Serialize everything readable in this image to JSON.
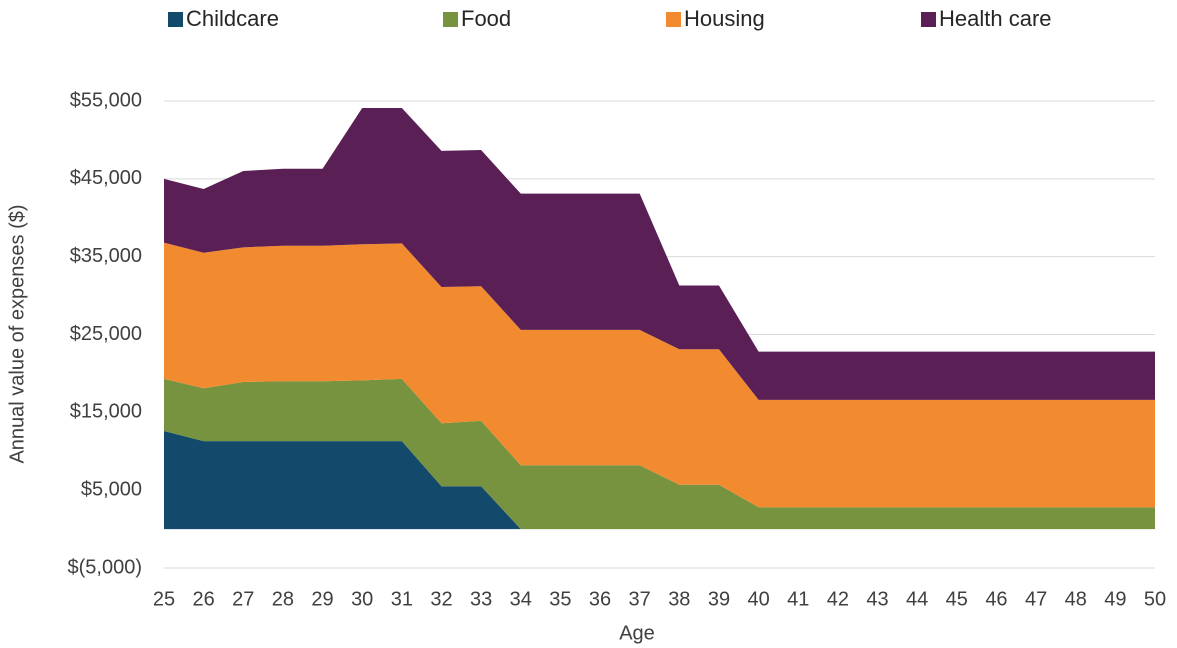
{
  "chart_data": {
    "type": "stacked_area",
    "x_label": "Age",
    "y_label": "Annual value of expenses ($)",
    "x": [
      25,
      26,
      27,
      28,
      29,
      30,
      31,
      32,
      33,
      34,
      35,
      36,
      37,
      38,
      39,
      40,
      41,
      42,
      43,
      44,
      45,
      46,
      47,
      48,
      49,
      50
    ],
    "xlim": [
      25,
      50
    ],
    "xticks": [
      25,
      26,
      27,
      28,
      29,
      30,
      31,
      32,
      33,
      34,
      35,
      36,
      37,
      38,
      39,
      40,
      41,
      42,
      43,
      44,
      45,
      46,
      47,
      48,
      49,
      50
    ],
    "ylim": [
      -5000,
      55000
    ],
    "yticks": [
      {
        "value": -5000,
        "label": "$(5,000)"
      },
      {
        "value": 5000,
        "label": "$5,000"
      },
      {
        "value": 15000,
        "label": "$15,000"
      },
      {
        "value": 25000,
        "label": "$25,000"
      },
      {
        "value": 35000,
        "label": "$35,000"
      },
      {
        "value": 45000,
        "label": "$45,000"
      },
      {
        "value": 55000,
        "label": "$55,000"
      }
    ],
    "grid": true,
    "legend": "top",
    "series": [
      {
        "name": "Childcare",
        "color": "#134a6b",
        "values": [
          12600,
          11300,
          11300,
          11300,
          11300,
          11300,
          11300,
          5500,
          5500,
          0,
          0,
          0,
          0,
          0,
          0,
          0,
          0,
          0,
          0,
          0,
          0,
          0,
          0,
          0,
          0,
          0
        ]
      },
      {
        "name": "Food",
        "color": "#78933f",
        "values": [
          6700,
          6800,
          7600,
          7700,
          7700,
          7800,
          8000,
          8100,
          8400,
          8200,
          8200,
          8200,
          8200,
          5700,
          5700,
          2800,
          2800,
          2800,
          2800,
          2800,
          2800,
          2800,
          2800,
          2800,
          2800,
          2800
        ]
      },
      {
        "name": "Housing",
        "color": "#f28b30",
        "values": [
          17500,
          17400,
          17300,
          17400,
          17400,
          17500,
          17400,
          17500,
          17300,
          17400,
          17400,
          17400,
          17400,
          17400,
          17400,
          13800,
          13800,
          13800,
          13800,
          13800,
          13800,
          13800,
          13800,
          13800,
          13800,
          13800
        ]
      },
      {
        "name": "Health care",
        "color": "#5a1f54",
        "values": [
          8200,
          8200,
          9800,
          9900,
          9900,
          17500,
          17400,
          17500,
          17500,
          17500,
          17500,
          17500,
          17500,
          8200,
          8200,
          6200,
          6200,
          6200,
          6200,
          6200,
          6200,
          6200,
          6200,
          6200,
          6200,
          6200
        ]
      }
    ]
  }
}
